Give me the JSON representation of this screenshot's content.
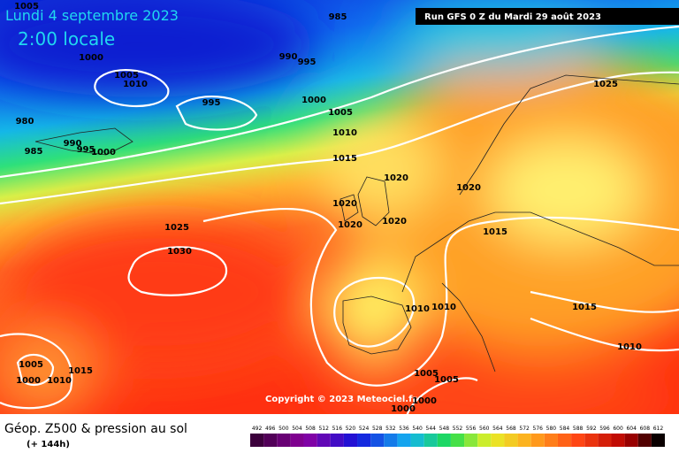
{
  "header": {
    "date": "Lundi 4 septembre 2023",
    "time": "2:00 locale",
    "run": "Run GFS 0 Z du Mardi 29 août 2023"
  },
  "copyright": "Copyright © 2023 Meteociel.fr",
  "footer": {
    "title": "Géop. Z500 & pression au sol",
    "lead": "(+ 144h)"
  },
  "scale": {
    "labels": [
      "492",
      "496",
      "500",
      "504",
      "508",
      "512",
      "516",
      "520",
      "524",
      "528",
      "532",
      "536",
      "540",
      "544",
      "548",
      "552",
      "556",
      "560",
      "564",
      "568",
      "572",
      "576",
      "580",
      "584",
      "588",
      "592",
      "596",
      "600",
      "604",
      "608",
      "612"
    ]
  },
  "isobar_labels": [
    "1005",
    "985",
    "1000",
    "990",
    "995",
    "1005",
    "1010",
    "995",
    "1000",
    "980",
    "1005",
    "1010",
    "985",
    "990",
    "995",
    "1000",
    "1015",
    "1025",
    "1020",
    "1020",
    "1020",
    "1020",
    "1020",
    "1025",
    "1015",
    "1030",
    "1010",
    "1010",
    "1015",
    "1010",
    "1005",
    "1015",
    "1000",
    "1010",
    "1005",
    "1005",
    "1000",
    "1000"
  ]
}
